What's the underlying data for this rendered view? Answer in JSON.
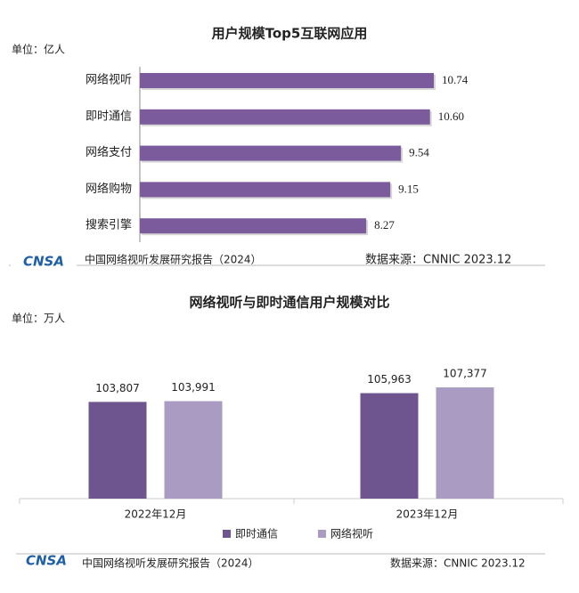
{
  "chart_data": [
    {
      "type": "bar",
      "orientation": "horizontal",
      "title": "用户规模Top5互联网应用",
      "unit": "单位：亿人",
      "categories": [
        "网络视听",
        "即时通信",
        "网络支付",
        "网络购物",
        "搜索引擎"
      ],
      "values": [
        10.74,
        10.6,
        9.54,
        9.15,
        8.27
      ],
      "value_labels": [
        "10.74",
        "10.60",
        "9.54",
        "9.15",
        "8.27"
      ],
      "color": "#7b5b9c",
      "logo": "CNSA",
      "footer_left": "中国网络视听发展研究报告（2024）",
      "footer_right": "数据来源：CNNIC    2023.12"
    },
    {
      "type": "bar",
      "orientation": "vertical",
      "title": "网络视听与即时通信用户规模对比",
      "unit": "单位：万人",
      "categories": [
        "2022年12月",
        "2023年12月"
      ],
      "series": [
        {
          "name": "即时通信",
          "color": "#6e5590",
          "values": [
            103807,
            105963
          ],
          "value_labels": [
            "103,807",
            "105,963"
          ]
        },
        {
          "name": "网络视听",
          "color": "#a99bc1",
          "values": [
            103991,
            107377
          ],
          "value_labels": [
            "103,991",
            "107,377"
          ]
        }
      ],
      "ylim": [
        80000,
        112000
      ],
      "legend": "bottom",
      "logo": "CNSA",
      "footer_left": "中国网络视听发展研究报告（2024）",
      "footer_right": "数据来源：CNNIC  2023.12"
    }
  ]
}
